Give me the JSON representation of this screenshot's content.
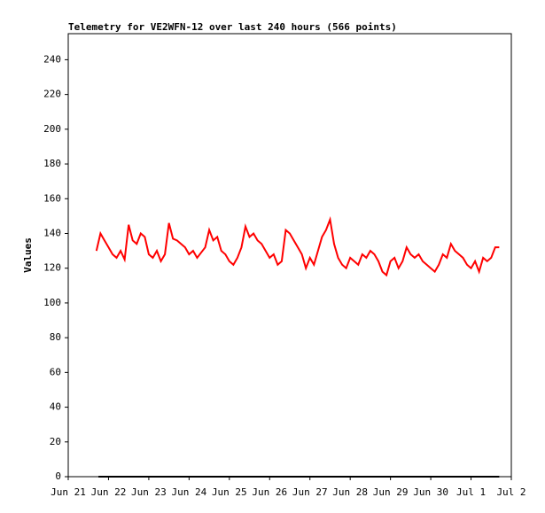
{
  "chart_data": {
    "type": "line",
    "title": "Telemetry for VE2WFN-12 over last 240 hours (566 points)",
    "y_label": "Values",
    "xlim": [
      21,
      32
    ],
    "xticks": [
      {
        "value": 21,
        "label": "Jun 21"
      },
      {
        "value": 22,
        "label": "Jun 22"
      },
      {
        "value": 23,
        "label": "Jun 23"
      },
      {
        "value": 24,
        "label": "Jun 24"
      },
      {
        "value": 25,
        "label": "Jun 25"
      },
      {
        "value": 26,
        "label": "Jun 26"
      },
      {
        "value": 27,
        "label": "Jun 27"
      },
      {
        "value": 28,
        "label": "Jun 28"
      },
      {
        "value": 29,
        "label": "Jun 29"
      },
      {
        "value": 30,
        "label": "Jun 30"
      },
      {
        "value": 31,
        "label": "Jul 1"
      },
      {
        "value": 32,
        "label": "Jul 2"
      }
    ],
    "ylim": [
      0,
      255
    ],
    "yticks": [
      0,
      20,
      40,
      60,
      80,
      100,
      120,
      140,
      160,
      180,
      200,
      220,
      240
    ],
    "series": [
      {
        "color": "#ff0000",
        "x": [
          21.7,
          21.8,
          21.9,
          22.0,
          22.1,
          22.2,
          22.3,
          22.4,
          22.5,
          22.6,
          22.7,
          22.8,
          22.9,
          23.0,
          23.1,
          23.2,
          23.3,
          23.4,
          23.5,
          23.6,
          23.7,
          23.8,
          23.9,
          24.0,
          24.1,
          24.2,
          24.3,
          24.4,
          24.5,
          24.6,
          24.7,
          24.8,
          24.9,
          25.0,
          25.1,
          25.2,
          25.3,
          25.4,
          25.5,
          25.6,
          25.7,
          25.8,
          25.9,
          26.0,
          26.1,
          26.2,
          26.3,
          26.4,
          26.5,
          26.6,
          26.7,
          26.8,
          26.9,
          27.0,
          27.1,
          27.2,
          27.3,
          27.4,
          27.5,
          27.6,
          27.7,
          27.8,
          27.9,
          28.0,
          28.1,
          28.2,
          28.3,
          28.4,
          28.5,
          28.6,
          28.7,
          28.8,
          28.9,
          29.0,
          29.1,
          29.2,
          29.3,
          29.4,
          29.5,
          29.6,
          29.7,
          29.8,
          29.9,
          30.0,
          30.1,
          30.2,
          30.3,
          30.4,
          30.5,
          30.6,
          30.7,
          30.8,
          30.9,
          31.0,
          31.1,
          31.2,
          31.3,
          31.4,
          31.5,
          31.6,
          31.7
        ],
        "values": [
          130,
          140,
          136,
          132,
          128,
          126,
          130,
          125,
          145,
          136,
          134,
          140,
          138,
          128,
          126,
          130,
          124,
          128,
          146,
          137,
          136,
          134,
          132,
          128,
          130,
          126,
          129,
          132,
          142,
          136,
          138,
          130,
          128,
          124,
          122,
          126,
          132,
          144,
          138,
          140,
          136,
          134,
          130,
          126,
          128,
          122,
          124,
          142,
          140,
          136,
          132,
          128,
          120,
          126,
          122,
          130,
          138,
          142,
          148,
          134,
          126,
          122,
          120,
          126,
          124,
          122,
          128,
          126,
          130,
          128,
          124,
          118,
          116,
          124,
          126,
          120,
          124,
          132,
          128,
          126,
          128,
          124,
          122,
          120,
          118,
          122,
          128,
          126,
          134,
          130,
          128,
          126,
          122,
          120,
          124,
          118,
          126,
          124,
          126,
          132,
          132
        ]
      },
      {
        "color": "#000000",
        "x": [
          21.75,
          31.7
        ],
        "values": [
          0,
          0
        ]
      }
    ]
  }
}
